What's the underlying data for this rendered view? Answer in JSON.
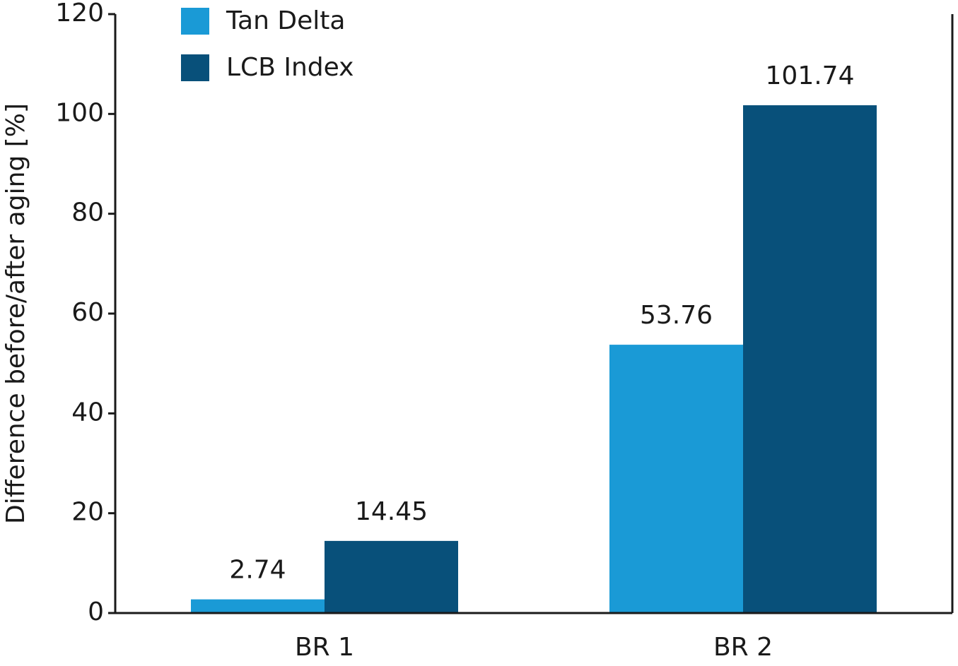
{
  "chart_data": {
    "type": "grouped_bar",
    "y_label": "Difference before/after aging [%]",
    "categories": [
      "BR 1",
      "BR 2"
    ],
    "series": [
      {
        "name": "Tan Delta",
        "color": "#1a9ad6",
        "values": [
          2.74,
          53.76
        ]
      },
      {
        "name": "LCB Index",
        "color": "#08507a",
        "values": [
          14.45,
          101.74
        ]
      }
    ],
    "ylim": [
      0,
      120
    ],
    "yticks": [
      0,
      20,
      40,
      60,
      80,
      100,
      120
    ],
    "legend": "top-left",
    "value_labels_shown": true
  }
}
